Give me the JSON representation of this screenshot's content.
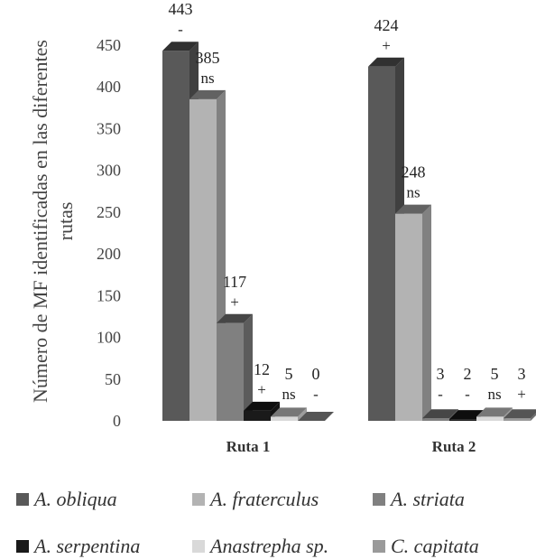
{
  "chart_data": {
    "type": "bar",
    "ylabel": "Número de MF identificadas en las diferentes rutas",
    "ylim": [
      0,
      450
    ],
    "yticks": [
      0,
      50,
      100,
      150,
      200,
      250,
      300,
      350,
      400,
      450
    ],
    "categories": [
      "Ruta 1",
      "Ruta 2"
    ],
    "series": [
      {
        "name": "A. obliqua",
        "color": "#595959",
        "values": [
          443,
          424
        ],
        "marks": [
          "-",
          "+"
        ]
      },
      {
        "name": "A. fraterculus",
        "color": "#b3b3b3",
        "values": [
          385,
          248
        ],
        "marks": [
          "ns",
          "ns"
        ]
      },
      {
        "name": "A. striata",
        "color": "#808080",
        "values": [
          117,
          3
        ],
        "marks": [
          "+",
          "-"
        ]
      },
      {
        "name": "A. serpentina",
        "color": "#1a1a1a",
        "values": [
          12,
          2
        ],
        "marks": [
          "+",
          "-"
        ]
      },
      {
        "name": "Anastrepha sp.",
        "color": "#d9d9d9",
        "values": [
          5,
          5
        ],
        "marks": [
          "ns",
          "ns"
        ]
      },
      {
        "name": "C. capitata",
        "color": "#9a9a9a",
        "values": [
          0,
          3
        ],
        "marks": [
          "-",
          "+"
        ]
      }
    ],
    "legend_position": "bottom",
    "grid": false
  }
}
